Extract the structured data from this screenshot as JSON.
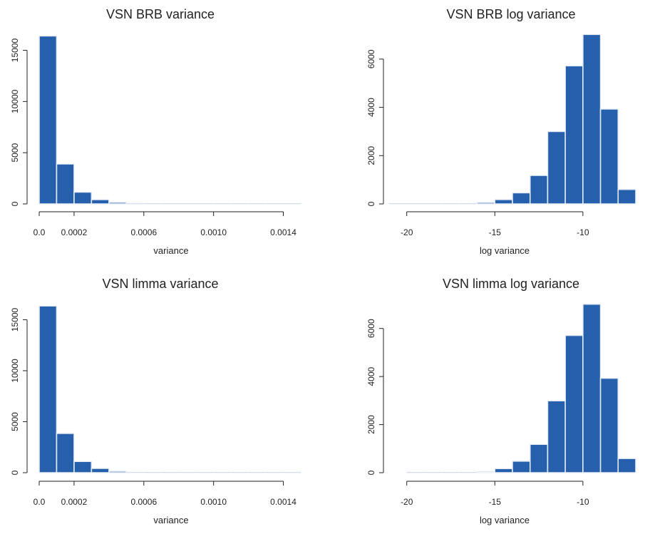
{
  "chart_data": [
    {
      "type": "bar",
      "title": "VSN BRB variance",
      "xlabel": "variance",
      "ylabel": "",
      "xlim": [
        0.0,
        0.0015
      ],
      "ylim": [
        0,
        16500
      ],
      "bin_width": 0.0001,
      "bin_edges": [
        0.0,
        0.0001,
        0.0002,
        0.0003,
        0.0004,
        0.0005,
        0.0006,
        0.0007,
        0.0008,
        0.0009,
        0.001,
        0.0011,
        0.0012,
        0.0013,
        0.0014,
        0.0015
      ],
      "values": [
        16400,
        3900,
        1150,
        420,
        150,
        60,
        25,
        15,
        10,
        8,
        5,
        5,
        3,
        3,
        2
      ],
      "xticks": [
        0.0,
        0.0002,
        0.0006,
        0.001,
        0.0014
      ],
      "xtick_labels": [
        "0.0",
        "0.0002",
        "0.0006",
        "0.0010",
        "0.0014"
      ],
      "yticks": [
        0,
        5000,
        10000,
        15000
      ],
      "ytick_labels": [
        "0",
        "5000",
        "10000",
        "15000"
      ],
      "bar_color": "#2660ad"
    },
    {
      "type": "bar",
      "title": "VSN BRB log variance",
      "xlabel": "log variance",
      "ylabel": "",
      "xlim": [
        -21,
        -7
      ],
      "ylim": [
        0,
        7000
      ],
      "bin_width": 1,
      "bin_edges": [
        -21,
        -20,
        -19,
        -18,
        -17,
        -16,
        -15,
        -14,
        -13,
        -12,
        -11,
        -10,
        -9,
        -8,
        -7
      ],
      "values": [
        5,
        0,
        2,
        3,
        5,
        60,
        180,
        460,
        1180,
        3000,
        5720,
        7020,
        3930,
        600
      ],
      "xticks": [
        -20,
        -15,
        -10
      ],
      "xtick_labels": [
        "-20",
        "-15",
        "-10"
      ],
      "yticks": [
        0,
        2000,
        4000,
        6000
      ],
      "ytick_labels": [
        "0",
        "2000",
        "4000",
        "6000"
      ],
      "bar_color": "#2660ad"
    },
    {
      "type": "bar",
      "title": "VSN limma variance",
      "xlabel": "variance",
      "ylabel": "",
      "xlim": [
        0.0,
        0.0015
      ],
      "ylim": [
        0,
        16500
      ],
      "bin_width": 0.0001,
      "bin_edges": [
        0.0,
        0.0001,
        0.0002,
        0.0003,
        0.0004,
        0.0005,
        0.0006,
        0.0007,
        0.0008,
        0.0009,
        0.001,
        0.0011,
        0.0012,
        0.0013,
        0.0014,
        0.0015
      ],
      "values": [
        16350,
        3850,
        1100,
        420,
        140,
        50,
        20,
        10,
        6,
        4,
        3,
        2,
        2,
        1,
        1
      ],
      "xticks": [
        0.0,
        0.0002,
        0.0006,
        0.001,
        0.0014
      ],
      "xtick_labels": [
        "0.0",
        "0.0002",
        "0.0006",
        "0.0010",
        "0.0014"
      ],
      "yticks": [
        0,
        5000,
        10000,
        15000
      ],
      "ytick_labels": [
        "0",
        "5000",
        "10000",
        "15000"
      ],
      "bar_color": "#2660ad"
    },
    {
      "type": "bar",
      "title": "VSN limma log variance",
      "xlabel": "log variance",
      "ylabel": "",
      "xlim": [
        -21,
        -7
      ],
      "ylim": [
        0,
        7000
      ],
      "bin_width": 1,
      "bin_edges": [
        -20,
        -19,
        -18,
        -17,
        -16,
        -15,
        -14,
        -13,
        -12,
        -11,
        -10,
        -9,
        -8,
        -7
      ],
      "values": [
        2,
        2,
        3,
        15,
        40,
        170,
        480,
        1180,
        2990,
        5710,
        7010,
        3930,
        590
      ],
      "xticks": [
        -20,
        -15,
        -10
      ],
      "xtick_labels": [
        "-20",
        "-15",
        "-10"
      ],
      "yticks": [
        0,
        2000,
        4000,
        6000
      ],
      "ytick_labels": [
        "0",
        "2000",
        "4000",
        "6000"
      ],
      "bar_color": "#2660ad"
    }
  ]
}
